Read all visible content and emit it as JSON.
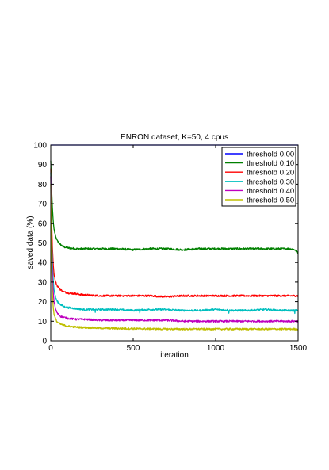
{
  "chart_data": {
    "type": "line",
    "title": "ENRON dataset, K=50, 4 cpus",
    "xlabel": "iteration",
    "ylabel": "saved data (%)",
    "xlim": [
      0,
      1500
    ],
    "ylim": [
      0,
      100
    ],
    "xticks": [
      0,
      500,
      1000,
      1500
    ],
    "yticks": [
      0,
      10,
      20,
      30,
      40,
      50,
      60,
      70,
      80,
      90,
      100
    ],
    "grid": false,
    "legend_position": "top-right",
    "series": [
      {
        "name": "threshold 0.00",
        "color": "#0000ff",
        "x": [
          0,
          1500
        ],
        "y": [
          100,
          100
        ]
      },
      {
        "name": "threshold 0.10",
        "color": "#008000",
        "x": [
          0,
          5,
          10,
          15,
          20,
          30,
          40,
          60,
          80,
          100,
          150,
          200,
          300,
          400,
          500,
          600,
          700,
          800,
          900,
          1000,
          1100,
          1200,
          1300,
          1400,
          1450,
          1480,
          1500
        ],
        "y": [
          92,
          78,
          68,
          61,
          57,
          53,
          51,
          49,
          48,
          47.5,
          47,
          47,
          47,
          47,
          46.5,
          47,
          47,
          46.5,
          47,
          47,
          47,
          47,
          47,
          47,
          47,
          46.5,
          45
        ]
      },
      {
        "name": "threshold 0.20",
        "color": "#ff0000",
        "x": [
          0,
          5,
          10,
          15,
          20,
          30,
          40,
          60,
          80,
          100,
          150,
          200,
          300,
          400,
          500,
          600,
          700,
          800,
          900,
          1000,
          1100,
          1200,
          1300,
          1400,
          1500
        ],
        "y": [
          88,
          62,
          48,
          39,
          34,
          30,
          28,
          26,
          25,
          24.5,
          24,
          23.5,
          23,
          23,
          23,
          23,
          22.5,
          23,
          23,
          23,
          23,
          23,
          23,
          23,
          23
        ]
      },
      {
        "name": "threshold 0.30",
        "color": "#00bfbf",
        "x": [
          0,
          5,
          10,
          15,
          20,
          30,
          40,
          60,
          80,
          100,
          150,
          200,
          300,
          400,
          500,
          600,
          700,
          800,
          900,
          1000,
          1100,
          1200,
          1300,
          1400,
          1500
        ],
        "y": [
          86,
          55,
          40,
          31,
          26,
          22,
          20,
          18.5,
          17.5,
          17,
          16.5,
          16,
          16,
          16,
          15.5,
          16,
          16,
          15.5,
          15.5,
          16,
          15.5,
          15.5,
          16,
          15.5,
          15.5
        ]
      },
      {
        "name": "threshold 0.40",
        "color": "#bf00bf",
        "x": [
          0,
          5,
          10,
          15,
          20,
          30,
          40,
          60,
          80,
          100,
          150,
          200,
          300,
          400,
          500,
          600,
          700,
          800,
          900,
          1000,
          1100,
          1200,
          1300,
          1400,
          1500
        ],
        "y": [
          84,
          48,
          33,
          25,
          20,
          16,
          14,
          12.5,
          12,
          11.5,
          11,
          11,
          10.5,
          10.5,
          10.5,
          10.5,
          10.5,
          10,
          10,
          10,
          10,
          10,
          10,
          10,
          10
        ]
      },
      {
        "name": "threshold 0.50",
        "color": "#bfbf00",
        "x": [
          0,
          5,
          10,
          15,
          20,
          30,
          40,
          60,
          80,
          100,
          150,
          200,
          300,
          400,
          500,
          600,
          700,
          800,
          900,
          1000,
          1100,
          1200,
          1300,
          1400,
          1500
        ],
        "y": [
          80,
          38,
          24,
          17,
          13.5,
          11,
          9.5,
          8.5,
          8,
          7.5,
          7,
          6.8,
          6.5,
          6.3,
          6.2,
          6.1,
          6,
          6,
          6,
          6,
          6,
          6,
          6,
          6,
          6
        ]
      }
    ]
  }
}
